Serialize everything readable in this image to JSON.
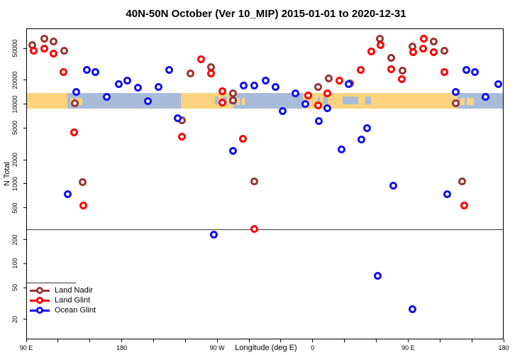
{
  "chart_data": {
    "type": "scatter",
    "title": "40N-50N October (Ver 10_MIP)  2015-01-01 to 2020-12-31",
    "xlabel": "Longitude (deg E)",
    "ylabel": "N Total",
    "x_axis": {
      "min": 90,
      "max": 540,
      "minor_step": 30,
      "major_ticks": [
        {
          "lon": 90,
          "label": "90 E"
        },
        {
          "lon": 180,
          "label": "180"
        },
        {
          "lon": 270,
          "label": "90 W"
        },
        {
          "lon": 360,
          "label": "0"
        },
        {
          "lon": 450,
          "label": "90 E"
        },
        {
          "lon": 540,
          "label": "180"
        }
      ]
    },
    "y_axis": {
      "scale": "log",
      "ticks": [
        20,
        50,
        100,
        200,
        500,
        1000,
        2000,
        5000,
        10000,
        20000,
        50000
      ],
      "ylim": [
        11,
        89000
      ]
    },
    "threshold_line_n": 270,
    "legend_rule": {
      "n": 58,
      "lon_from": 90,
      "lon_to": 137
    },
    "map_band": {
      "n_top": 13700,
      "n_bottom": 8800,
      "ocean_color": "#a8bcd9",
      "land_color": "#fcd37f",
      "land_segments": [
        [
          90,
          129
        ],
        [
          236,
          285.3
        ],
        [
          350.7,
          496.7
        ]
      ],
      "islands": [
        [
          131.5,
          134
        ],
        [
          137,
          143
        ],
        [
          288.5,
          291
        ],
        [
          293.5,
          296
        ],
        [
          499,
          503
        ],
        [
          505,
          512
        ]
      ],
      "lakes": [
        [
          268,
          271.5
        ],
        [
          275.5,
          279
        ],
        [
          281,
          283.5
        ],
        [
          364.5,
          367
        ],
        [
          370,
          374.5
        ],
        [
          388,
          403
        ],
        [
          409.5,
          415
        ]
      ]
    },
    "series": [
      {
        "name": "Land Nadir",
        "color": "#983634",
        "points": [
          [
            96,
            55000
          ],
          [
            107,
            66000
          ],
          [
            116,
            61000
          ],
          [
            126,
            47000
          ],
          [
            136,
            10300
          ],
          [
            143,
            1060
          ],
          [
            237,
            6200
          ],
          [
            245,
            24000
          ],
          [
            264,
            29000
          ],
          [
            285,
            13500
          ],
          [
            285,
            11000
          ],
          [
            305,
            1080
          ],
          [
            365,
            16500
          ],
          [
            375,
            21000
          ],
          [
            395,
            18300
          ],
          [
            423,
            66000
          ],
          [
            434,
            38000
          ],
          [
            445,
            26000
          ],
          [
            454,
            53000
          ],
          [
            474,
            61000
          ],
          [
            484,
            47000
          ],
          [
            495,
            10300
          ],
          [
            501,
            1080
          ]
        ]
      },
      {
        "name": "Land Glint",
        "color": "#fb0202",
        "points": [
          [
            97,
            47000
          ],
          [
            107,
            49000
          ],
          [
            116,
            43000
          ],
          [
            125,
            25000
          ],
          [
            135,
            4400
          ],
          [
            144,
            540
          ],
          [
            237,
            3900
          ],
          [
            255,
            36500
          ],
          [
            264,
            24000
          ],
          [
            275,
            14600
          ],
          [
            275,
            10500
          ],
          [
            294,
            3700
          ],
          [
            305,
            270
          ],
          [
            356,
            12700
          ],
          [
            365,
            9700
          ],
          [
            374,
            13700
          ],
          [
            385,
            19500
          ],
          [
            405,
            26500
          ],
          [
            415,
            46000
          ],
          [
            424,
            55000
          ],
          [
            434,
            27500
          ],
          [
            444,
            20700
          ],
          [
            455,
            45000
          ],
          [
            464,
            49000
          ],
          [
            465,
            66000
          ],
          [
            474,
            45000
          ],
          [
            484,
            25000
          ],
          [
            503,
            540
          ]
        ]
      },
      {
        "name": "Ocean Glint",
        "color": "#1212ee",
        "points": [
          [
            129,
            750
          ],
          [
            137,
            14300
          ],
          [
            147,
            27000
          ],
          [
            155,
            25400
          ],
          [
            166,
            12200
          ],
          [
            177,
            17900
          ],
          [
            185,
            19500
          ],
          [
            195,
            16200
          ],
          [
            205,
            10800
          ],
          [
            215,
            16500
          ],
          [
            225,
            26500
          ],
          [
            233,
            6700
          ],
          [
            267,
            230
          ],
          [
            285,
            2600
          ],
          [
            295,
            16900
          ],
          [
            305,
            17200
          ],
          [
            316,
            19500
          ],
          [
            325,
            16500
          ],
          [
            332,
            8100
          ],
          [
            344,
            13500
          ],
          [
            353,
            10100
          ],
          [
            366,
            6100
          ],
          [
            374,
            8800
          ],
          [
            387,
            2700
          ],
          [
            394,
            17600
          ],
          [
            406,
            3600
          ],
          [
            411,
            5000
          ],
          [
            421,
            70
          ],
          [
            436,
            940
          ],
          [
            454,
            27
          ],
          [
            487,
            750
          ],
          [
            495,
            14300
          ],
          [
            505,
            26500
          ],
          [
            513,
            25400
          ],
          [
            523,
            12200
          ],
          [
            535,
            17900
          ]
        ]
      }
    ]
  },
  "legend": {
    "items": [
      "Land Nadir",
      "Land Glint",
      "Ocean Glint"
    ]
  }
}
